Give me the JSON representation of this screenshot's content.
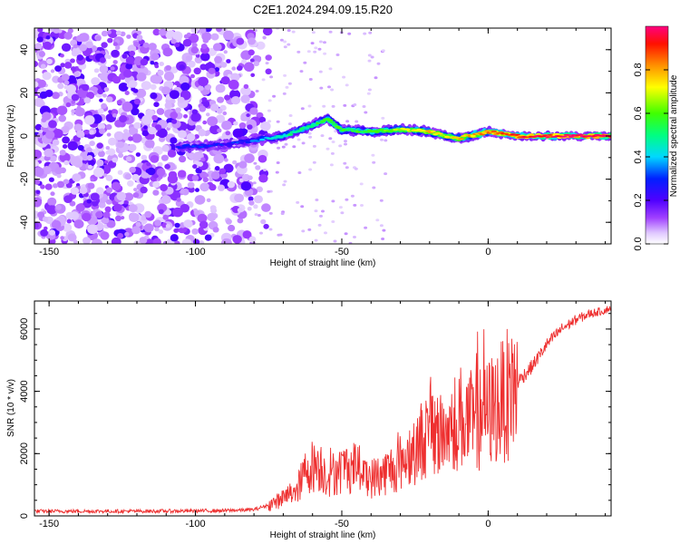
{
  "chart_data": [
    {
      "type": "heatmap",
      "title": "C2E1.2024.294.09.15.R20",
      "xlabel": "Height of straight line (km)",
      "ylabel": "Frequency (Hz)",
      "xlim": [
        -155,
        42
      ],
      "ylim": [
        -50,
        50
      ],
      "xticks": [
        -150,
        -100,
        -50,
        0
      ],
      "yticks": [
        -40,
        -20,
        0,
        20,
        40
      ],
      "colorbar": {
        "label": "Normalized spectral amplitude",
        "range": [
          0.0,
          1.0
        ],
        "ticks": [
          "0.0",
          "0.2",
          "0.4",
          "0.6",
          "0.8"
        ],
        "colormap": [
          "#ffffff",
          "#d8b8ff",
          "#8000ff",
          "#0000ff",
          "#00ffff",
          "#00ff00",
          "#ffff00",
          "#ff8000",
          "#ff0000",
          "#ff0080"
        ]
      },
      "ridge": {
        "description_points": [
          {
            "x": -105,
            "y": -5,
            "amp": 0.25
          },
          {
            "x": -90,
            "y": -4,
            "amp": 0.2
          },
          {
            "x": -80,
            "y": -2,
            "amp": 0.25
          },
          {
            "x": -70,
            "y": 0,
            "amp": 0.4
          },
          {
            "x": -60,
            "y": 5,
            "amp": 0.45
          },
          {
            "x": -55,
            "y": 8,
            "amp": 0.5
          },
          {
            "x": -50,
            "y": 3,
            "amp": 0.5
          },
          {
            "x": -40,
            "y": 2,
            "amp": 0.5
          },
          {
            "x": -30,
            "y": 3,
            "amp": 0.6
          },
          {
            "x": -20,
            "y": 2,
            "amp": 0.7
          },
          {
            "x": -15,
            "y": 0,
            "amp": 0.6
          },
          {
            "x": -10,
            "y": -1,
            "amp": 0.7
          },
          {
            "x": 0,
            "y": 2,
            "amp": 0.75
          },
          {
            "x": 10,
            "y": 0,
            "amp": 0.85
          },
          {
            "x": 25,
            "y": 0,
            "amp": 0.9
          },
          {
            "x": 42,
            "y": 0,
            "amp": 0.95
          }
        ]
      }
    },
    {
      "type": "line",
      "xlabel": "Height of straight line (km)",
      "ylabel": "SNR (10 * v/v)",
      "xlim": [
        -155,
        42
      ],
      "ylim": [
        0,
        6900
      ],
      "xticks": [
        -150,
        -100,
        -50,
        0
      ],
      "yticks": [
        0,
        2000,
        4000,
        6000
      ],
      "color": "#ee3030",
      "series": [
        {
          "x": [
            -155,
            -140,
            -120,
            -100,
            -90,
            -80,
            -75,
            -70,
            -65,
            -62,
            -58,
            -55,
            -50,
            -45,
            -42,
            -40,
            -35,
            -30,
            -25,
            -20,
            -15,
            -12,
            -10,
            -5,
            0,
            5,
            10,
            15,
            20,
            25,
            30,
            35,
            40,
            42
          ],
          "y": [
            150,
            150,
            150,
            160,
            170,
            200,
            350,
            550,
            900,
            1500,
            1700,
            1300,
            1500,
            1600,
            1400,
            1200,
            1400,
            1700,
            2200,
            2700,
            2600,
            2900,
            3200,
            3000,
            3300,
            3700,
            4300,
            4800,
            5500,
            6000,
            6300,
            6500,
            6600,
            6700
          ]
        }
      ]
    }
  ]
}
